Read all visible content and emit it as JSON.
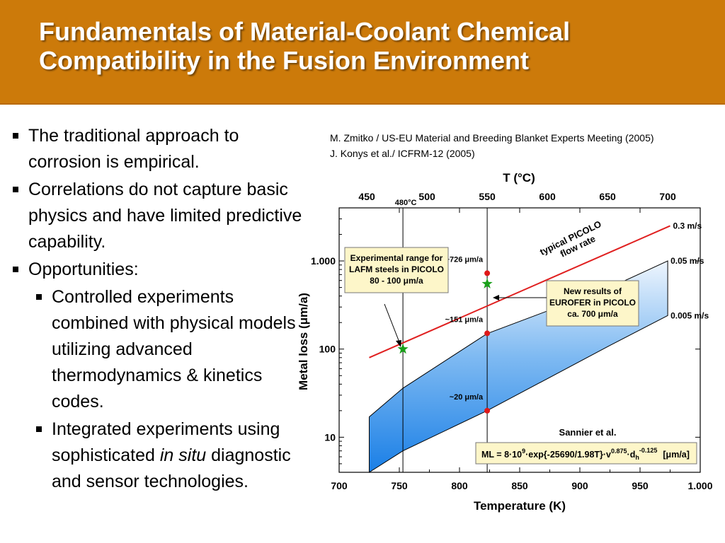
{
  "slide": {
    "title_line1": "Fundamentals of Material-Coolant Chemical",
    "title_line2": "Compatibility in the Fusion Environment",
    "header_color": "#cc7a0a"
  },
  "bullets": {
    "b1": "The traditional approach to corrosion is empirical.",
    "b2": "Correlations do not capture basic physics and have limited predictive capability.",
    "b3": "Opportunities:",
    "s1": "Controlled experiments combined with physical models utilizing advanced thermodynamics & kinetics codes.",
    "s2_a": "Integrated experiments using sophisticated ",
    "s2_em": "in situ",
    "s2_b": " diagnostic and sensor technologies."
  },
  "references": {
    "ref1": "M. Zmitko / US-EU Material and Breeding Blanket Experts Meeting (2005)",
    "ref2": "J. Konys et al./ ICFRM-12 (2005)"
  },
  "chart_data": {
    "type": "area",
    "xlabel": "Temperature (K)",
    "ylabel": "Metal loss (μm/a)",
    "top_xlabel": "T (°C)",
    "xlim": [
      700,
      1000
    ],
    "ylim": [
      4,
      4000
    ],
    "yscale": "log",
    "x_ticks": [
      700,
      750,
      800,
      850,
      900,
      950,
      1000
    ],
    "x_tick_labels": [
      "700",
      "750",
      "800",
      "850",
      "900",
      "950",
      "1.000"
    ],
    "y_ticks": [
      10,
      100,
      1000
    ],
    "y_tick_labels": [
      "10",
      "100",
      "1.000"
    ],
    "top_ticks_C": [
      450,
      500,
      550,
      600,
      650,
      700
    ],
    "top_tick_labels": [
      "450",
      "500",
      "550",
      "600",
      "650",
      "700"
    ],
    "vline_480_label": "480°C",
    "series": [
      {
        "name": "0.3 m/s",
        "x": [
          725,
          975
        ],
        "y": [
          80,
          2500
        ],
        "color": "#e02020"
      },
      {
        "name": "0.05 m/s",
        "x": [
          725,
          753,
          823,
          925,
          973
        ],
        "y": [
          17,
          36,
          150,
          500,
          1000
        ]
      },
      {
        "name": "0.005 m/s",
        "x": [
          725,
          753,
          823,
          925,
          973
        ],
        "y": [
          4,
          7,
          20,
          110,
          240
        ]
      }
    ],
    "points_at_823K": [
      {
        "label": "~726 μm/a",
        "y": 726
      },
      {
        "label": "~151 μm/a",
        "y": 151
      },
      {
        "label": "~20 μm/a",
        "y": 20
      }
    ],
    "stars": [
      {
        "x": 753,
        "y": 100
      },
      {
        "x": 823,
        "y": 550
      }
    ],
    "annotations": {
      "picolo_line1": "typical PICOLO",
      "picolo_line2": "flow rate",
      "exp_box_line1": "Experimental range for",
      "exp_box_line2": "LAFM steels in PICOLO",
      "exp_box_line3": "80 - 100 μm/a",
      "new_box_line1": "New results of",
      "new_box_line2": "EUROFER in PICOLO",
      "new_box_line3": "ca. 700 μm/a",
      "sannier": "Sannier et al.",
      "formula_main": "ML = 8·10",
      "formula_exp9": "9",
      "formula_mid": "·exp{-25690/1.98T}·v",
      "formula_expv": "0.875",
      "formula_dh": "·d",
      "formula_h": "h",
      "formula_expd": "-0.125",
      "formula_unit": "[μm/a]"
    },
    "legend": "none",
    "grid": false
  }
}
